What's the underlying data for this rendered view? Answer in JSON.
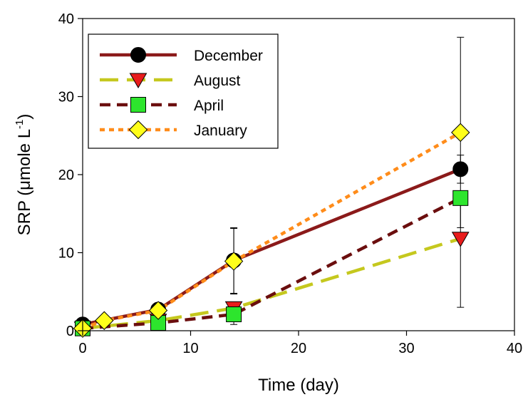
{
  "chart_data": {
    "type": "line",
    "xlabel": "Time (day)",
    "ylabel_prefix": "SRP (",
    "ylabel_mu": "μ",
    "ylabel_unit": "mole L",
    "ylabel_exp": "-1",
    "ylabel_suffix": ")",
    "xlim": [
      0,
      40
    ],
    "ylim": [
      0,
      40
    ],
    "xticks": [
      0,
      10,
      20,
      30,
      40
    ],
    "yticks": [
      0,
      10,
      20,
      30,
      40
    ],
    "grid": false,
    "legend_position": "top-left",
    "series": [
      {
        "name": "December",
        "line_color": "#8b1a1a",
        "marker": "circle",
        "marker_color": "#000000",
        "dash": "solid",
        "points": [
          {
            "x": 0,
            "y": 0.8,
            "err": 0
          },
          {
            "x": 7,
            "y": 2.7,
            "err": 0
          },
          {
            "x": 14,
            "y": 9.0,
            "err": 4.2
          },
          {
            "x": 35,
            "y": 20.7,
            "err": 1.8
          }
        ]
      },
      {
        "name": "August",
        "line_color": "#c5c81e",
        "marker": "triangle-down",
        "marker_color": "#e81c1c",
        "dash": "long-dash",
        "points": [
          {
            "x": 0,
            "y": 0.3,
            "err": 0
          },
          {
            "x": 7,
            "y": 1.3,
            "err": 0
          },
          {
            "x": 14,
            "y": 2.9,
            "err": 0.7
          },
          {
            "x": 35,
            "y": 11.8,
            "err": 0
          }
        ]
      },
      {
        "name": "April",
        "line_color": "#6b0e0e",
        "marker": "square",
        "marker_color": "#2de52d",
        "dash": "dash",
        "points": [
          {
            "x": 0,
            "y": 0.3,
            "err": 0
          },
          {
            "x": 7,
            "y": 1.0,
            "err": 0
          },
          {
            "x": 14,
            "y": 2.1,
            "err": 1.3
          },
          {
            "x": 35,
            "y": 17.0,
            "err": 0
          }
        ]
      },
      {
        "name": "January",
        "line_color": "#ff8c1a",
        "marker": "diamond",
        "marker_color": "#ffff1a",
        "dash": "dot",
        "points": [
          {
            "x": 0,
            "y": 0.3,
            "err": 0
          },
          {
            "x": 2,
            "y": 1.3,
            "err": 0
          },
          {
            "x": 7,
            "y": 2.6,
            "err": 0
          },
          {
            "x": 14,
            "y": 8.9,
            "err": 4.2
          },
          {
            "x": 35,
            "y": 25.4,
            "err": 12.2
          }
        ]
      }
    ],
    "extra_error_bars": [
      {
        "x": 35,
        "y": 17.0,
        "lo": 3.0,
        "hi": 17.0
      }
    ]
  }
}
